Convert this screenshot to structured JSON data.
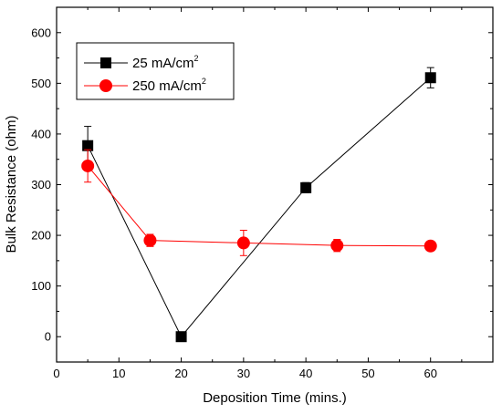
{
  "chart_data": {
    "type": "line",
    "title": "",
    "xlabel": "Deposition Time (mins.)",
    "ylabel": "Bulk Resistance (ohm)",
    "xlim": [
      0,
      70
    ],
    "ylim": [
      -50,
      650
    ],
    "x_ticks": [
      0,
      10,
      20,
      30,
      40,
      50,
      60
    ],
    "y_ticks": [
      0,
      100,
      200,
      300,
      400,
      500,
      600
    ],
    "grid": false,
    "legend_position": "top-left",
    "series": [
      {
        "name": "25 mA/cm",
        "name_superscript": "2",
        "color": "#000000",
        "marker": "square",
        "x": [
          5,
          20,
          40,
          60
        ],
        "y": [
          377,
          0,
          294,
          511
        ],
        "error": [
          38,
          0,
          10,
          20
        ]
      },
      {
        "name": "250 mA/cm",
        "name_superscript": "2",
        "color": "#ff0000",
        "marker": "circle",
        "x": [
          5,
          15,
          30,
          45,
          60
        ],
        "y": [
          337,
          190,
          185,
          180,
          179
        ],
        "error": [
          32,
          12,
          25,
          12,
          7
        ]
      }
    ]
  }
}
